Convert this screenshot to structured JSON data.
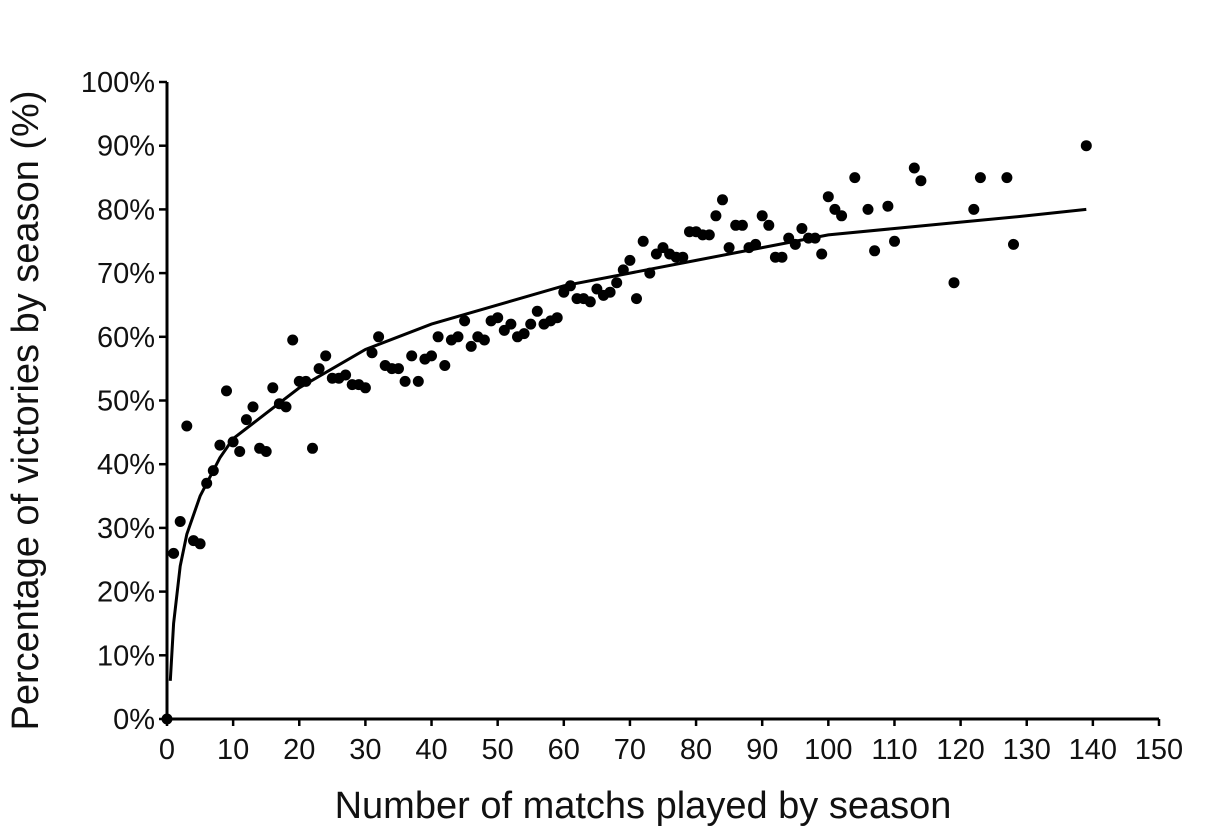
{
  "chart_data": {
    "type": "scatter",
    "title": "",
    "xlabel": "Number of matchs played by season",
    "ylabel": "Percentage of victories by season (%)",
    "xlim": [
      0,
      150
    ],
    "ylim": [
      0,
      100
    ],
    "x_ticks": [
      0,
      10,
      20,
      30,
      40,
      50,
      60,
      70,
      80,
      90,
      100,
      110,
      120,
      130,
      140,
      150
    ],
    "x_tick_labels": [
      "0",
      "10",
      "20",
      "30",
      "40",
      "50",
      "60",
      "70",
      "80",
      "90",
      "100",
      "110",
      "120",
      "130",
      "140",
      "150"
    ],
    "y_ticks": [
      0,
      10,
      20,
      30,
      40,
      50,
      60,
      70,
      80,
      90,
      100
    ],
    "y_tick_labels": [
      "0%",
      "10%",
      "20%",
      "30%",
      "40%",
      "50%",
      "60%",
      "70%",
      "80%",
      "90%",
      "100%"
    ],
    "grid": false,
    "legend": "none",
    "colors": {
      "points": "#000000",
      "trend": "#000000",
      "axes": "#000000"
    },
    "trend_line": {
      "type": "logarithmic",
      "x": [
        0.5,
        1,
        2,
        3,
        5,
        8,
        10,
        15,
        20,
        30,
        40,
        50,
        60,
        70,
        80,
        90,
        100,
        110,
        120,
        130,
        139
      ],
      "y": [
        6,
        15,
        24,
        29,
        35,
        41,
        44,
        48,
        52,
        58,
        62,
        65,
        68,
        70,
        72,
        74,
        76,
        77,
        78,
        79,
        80
      ]
    },
    "series": [
      {
        "points": [
          [
            0,
            0
          ],
          [
            1,
            26
          ],
          [
            2,
            31
          ],
          [
            3,
            46
          ],
          [
            4,
            28
          ],
          [
            5,
            27.5
          ],
          [
            6,
            37
          ],
          [
            7,
            39
          ],
          [
            8,
            43
          ],
          [
            9,
            51.5
          ],
          [
            10,
            43.5
          ],
          [
            11,
            42
          ],
          [
            12,
            47
          ],
          [
            13,
            49
          ],
          [
            14,
            42.5
          ],
          [
            15,
            42
          ],
          [
            16,
            52
          ],
          [
            17,
            49.5
          ],
          [
            18,
            49
          ],
          [
            19,
            59.5
          ],
          [
            20,
            53
          ],
          [
            21,
            53
          ],
          [
            22,
            42.5
          ],
          [
            23,
            55
          ],
          [
            24,
            57
          ],
          [
            25,
            53.5
          ],
          [
            26,
            53.5
          ],
          [
            27,
            54
          ],
          [
            28,
            52.5
          ],
          [
            29,
            52.5
          ],
          [
            30,
            52
          ],
          [
            31,
            57.5
          ],
          [
            32,
            60
          ],
          [
            33,
            55.5
          ],
          [
            34,
            55
          ],
          [
            35,
            55
          ],
          [
            36,
            53
          ],
          [
            37,
            57
          ],
          [
            38,
            53
          ],
          [
            39,
            56.5
          ],
          [
            40,
            57
          ],
          [
            41,
            60
          ],
          [
            42,
            55.5
          ],
          [
            43,
            59.5
          ],
          [
            44,
            60
          ],
          [
            45,
            62.5
          ],
          [
            46,
            58.5
          ],
          [
            47,
            60
          ],
          [
            48,
            59.5
          ],
          [
            49,
            62.5
          ],
          [
            50,
            63
          ],
          [
            51,
            61
          ],
          [
            52,
            62
          ],
          [
            53,
            60
          ],
          [
            54,
            60.5
          ],
          [
            55,
            62
          ],
          [
            56,
            64
          ],
          [
            57,
            62
          ],
          [
            58,
            62.5
          ],
          [
            59,
            63
          ],
          [
            60,
            67
          ],
          [
            61,
            68
          ],
          [
            62,
            66
          ],
          [
            63,
            66
          ],
          [
            64,
            65.5
          ],
          [
            65,
            67.5
          ],
          [
            66,
            66.5
          ],
          [
            67,
            67
          ],
          [
            68,
            68.5
          ],
          [
            69,
            70.5
          ],
          [
            70,
            72
          ],
          [
            71,
            66
          ],
          [
            72,
            75
          ],
          [
            73,
            70
          ],
          [
            74,
            73
          ],
          [
            75,
            74
          ],
          [
            76,
            73
          ],
          [
            77,
            72.5
          ],
          [
            78,
            72.5
          ],
          [
            79,
            76.5
          ],
          [
            80,
            76.5
          ],
          [
            81,
            76
          ],
          [
            82,
            76
          ],
          [
            83,
            79
          ],
          [
            84,
            81.5
          ],
          [
            85,
            74
          ],
          [
            86,
            77.5
          ],
          [
            87,
            77.5
          ],
          [
            88,
            74
          ],
          [
            89,
            74.5
          ],
          [
            90,
            79
          ],
          [
            91,
            77.5
          ],
          [
            92,
            72.5
          ],
          [
            93,
            72.5
          ],
          [
            94,
            75.5
          ],
          [
            95,
            74.5
          ],
          [
            96,
            77
          ],
          [
            97,
            75.5
          ],
          [
            98,
            75.5
          ],
          [
            99,
            73
          ],
          [
            100,
            82
          ],
          [
            101,
            80
          ],
          [
            102,
            79
          ],
          [
            104,
            85
          ],
          [
            106,
            80
          ],
          [
            107,
            73.5
          ],
          [
            109,
            80.5
          ],
          [
            110,
            75
          ],
          [
            113,
            86.5
          ],
          [
            114,
            84.5
          ],
          [
            119,
            68.5
          ],
          [
            122,
            80
          ],
          [
            123,
            85
          ],
          [
            127,
            85
          ],
          [
            128,
            74.5
          ],
          [
            139,
            90
          ]
        ]
      }
    ]
  }
}
